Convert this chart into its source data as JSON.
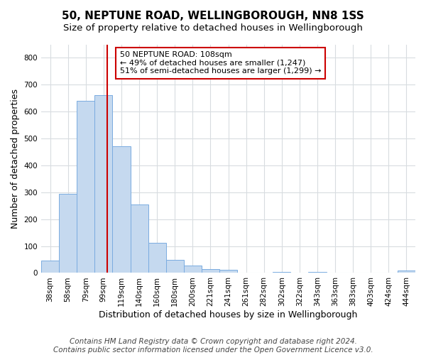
{
  "title": "50, NEPTUNE ROAD, WELLINGBOROUGH, NN8 1SS",
  "subtitle": "Size of property relative to detached houses in Wellingborough",
  "xlabel": "Distribution of detached houses by size in Wellingborough",
  "ylabel": "Number of detached properties",
  "bin_labels": [
    "38sqm",
    "58sqm",
    "79sqm",
    "99sqm",
    "119sqm",
    "140sqm",
    "160sqm",
    "180sqm",
    "200sqm",
    "221sqm",
    "241sqm",
    "261sqm",
    "282sqm",
    "302sqm",
    "322sqm",
    "343sqm",
    "363sqm",
    "383sqm",
    "403sqm",
    "424sqm",
    "444sqm"
  ],
  "bar_values": [
    47,
    295,
    640,
    660,
    470,
    255,
    113,
    48,
    28,
    15,
    13,
    0,
    0,
    5,
    0,
    5,
    0,
    0,
    0,
    0,
    8
  ],
  "bar_color": "#c5d9ef",
  "bar_edge_color": "#7aace0",
  "vline_x": 3.72,
  "vline_color": "#cc0000",
  "annotation_text": "50 NEPTUNE ROAD: 108sqm\n← 49% of detached houses are smaller (1,247)\n51% of semi-detached houses are larger (1,299) →",
  "annotation_box_color": "#ffffff",
  "annotation_box_edgecolor": "#cc0000",
  "ylim": [
    0,
    850
  ],
  "yticks": [
    0,
    100,
    200,
    300,
    400,
    500,
    600,
    700,
    800
  ],
  "footer_line1": "Contains HM Land Registry data © Crown copyright and database right 2024.",
  "footer_line2": "Contains public sector information licensed under the Open Government Licence v3.0.",
  "bg_color": "#ffffff",
  "plot_bg_color": "#ffffff",
  "grid_color": "#d8dce0",
  "title_fontsize": 11,
  "subtitle_fontsize": 9.5,
  "axis_label_fontsize": 9,
  "tick_fontsize": 7.5,
  "annotation_fontsize": 8,
  "footer_fontsize": 7.5
}
